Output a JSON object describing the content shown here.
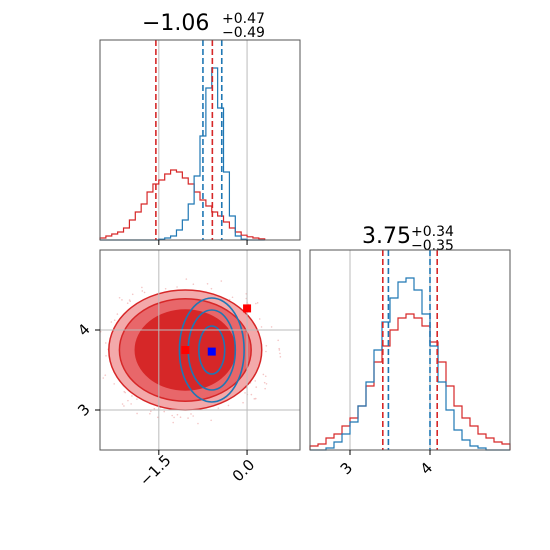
{
  "colors": {
    "red": "#d62728",
    "blue": "#1f77b4",
    "red_fill_light": "#f3a9aa",
    "red_fill_mid": "#e8676a",
    "red_fill_dark": "#d62728",
    "grid": "#bbbbbb",
    "marker_red": "#ff0000",
    "marker_blue": "#0000ff"
  },
  "titles": {
    "p1": {
      "main": "−1.06",
      "sup": "+0.47",
      "sub": "−0.49"
    },
    "p2": {
      "main": "3.75",
      "sup": "+0.34",
      "sub": "−0.35"
    }
  },
  "chart_data": [
    {
      "type": "line",
      "panel": "marginal-x",
      "drawstyle": "steps",
      "xlim": [
        -2.5,
        0.9
      ],
      "ylim": [
        0,
        5.0
      ],
      "x_bins": [
        -2.5,
        -2.4,
        -2.3,
        -2.2,
        -2.1,
        -2.0,
        -1.9,
        -1.8,
        -1.7,
        -1.6,
        -1.5,
        -1.4,
        -1.3,
        -1.2,
        -1.1,
        -1.0,
        -0.9,
        -0.8,
        -0.7,
        -0.6,
        -0.5,
        -0.4,
        -0.3,
        -0.2,
        -0.1,
        0.0,
        0.1,
        0.2,
        0.3
      ],
      "series": [
        {
          "color": "red",
          "values": [
            0.05,
            0.1,
            0.15,
            0.2,
            0.3,
            0.5,
            0.7,
            0.9,
            1.2,
            1.4,
            1.5,
            1.65,
            1.75,
            1.7,
            1.55,
            1.4,
            1.2,
            1.0,
            0.85,
            0.7,
            0.6,
            0.45,
            0.3,
            0.2,
            0.12,
            0.08,
            0.05,
            0.03
          ]
        },
        {
          "color": "blue",
          "values": [
            0,
            0,
            0,
            0,
            0,
            0,
            0,
            0,
            0,
            0,
            0.02,
            0.05,
            0.1,
            0.25,
            0.5,
            0.9,
            1.6,
            2.6,
            3.8,
            4.3,
            3.3,
            1.7,
            0.6,
            0.1,
            0.02,
            0,
            0,
            0
          ]
        }
      ],
      "vlines": [
        {
          "color": "red",
          "x": -1.55
        },
        {
          "color": "red",
          "x": -0.59
        },
        {
          "color": "blue",
          "x": -0.75
        },
        {
          "color": "blue",
          "x": -0.43
        }
      ],
      "grid_x": [
        -1.5,
        0.0
      ]
    },
    {
      "type": "line",
      "panel": "marginal-y",
      "drawstyle": "steps",
      "xlim": [
        2.5,
        5.0
      ],
      "ylim": [
        0,
        5.0
      ],
      "x_bins": [
        2.5,
        2.6,
        2.7,
        2.8,
        2.9,
        3.0,
        3.1,
        3.2,
        3.3,
        3.4,
        3.5,
        3.6,
        3.7,
        3.8,
        3.9,
        4.0,
        4.1,
        4.2,
        4.3,
        4.4,
        4.5,
        4.6,
        4.7,
        4.8,
        4.9,
        5.0
      ],
      "series": [
        {
          "color": "red",
          "values": [
            0.1,
            0.15,
            0.3,
            0.4,
            0.6,
            0.8,
            1.1,
            1.6,
            2.2,
            2.6,
            3.0,
            3.3,
            3.4,
            3.3,
            3.1,
            2.7,
            2.2,
            1.6,
            1.1,
            0.8,
            0.6,
            0.4,
            0.3,
            0.2,
            0.15
          ]
        },
        {
          "color": "blue",
          "values": [
            0,
            0,
            0.05,
            0.2,
            0.4,
            0.7,
            1.1,
            1.7,
            2.5,
            3.2,
            3.8,
            4.2,
            4.3,
            4.0,
            3.4,
            2.6,
            1.7,
            1.0,
            0.5,
            0.25,
            0.1,
            0.05,
            0,
            0,
            0
          ]
        }
      ],
      "vlines": [
        {
          "color": "red",
          "x": 3.41
        },
        {
          "color": "red",
          "x": 4.09
        },
        {
          "color": "blue",
          "x": 3.48
        },
        {
          "color": "blue",
          "x": 4.0
        }
      ],
      "grid_x": [
        3,
        4
      ],
      "tick_labels": [
        "3",
        "4"
      ]
    },
    {
      "type": "scatter",
      "panel": "joint",
      "xlim": [
        -2.5,
        0.9
      ],
      "ylim": [
        2.5,
        5.0
      ],
      "grid_x": [
        -1.5,
        0.0
      ],
      "grid_y": [
        3,
        4
      ],
      "x_tick_labels": [
        "−1.5",
        "0.0"
      ],
      "y_tick_labels": [
        "3",
        "4"
      ],
      "red_contours": [
        {
          "level": "outer",
          "cx": -1.05,
          "cy": 3.75,
          "rx": 1.3,
          "ry": 0.75
        },
        {
          "level": "middle",
          "cx": -1.05,
          "cy": 3.75,
          "rx": 1.12,
          "ry": 0.64
        },
        {
          "level": "inner",
          "cx": -1.05,
          "cy": 3.75,
          "rx": 0.85,
          "ry": 0.5
        }
      ],
      "blue_contours": [
        {
          "cx": -0.6,
          "cy": 3.75,
          "rx": 0.55,
          "ry": 0.65
        },
        {
          "cx": -0.6,
          "cy": 3.75,
          "rx": 0.4,
          "ry": 0.5
        },
        {
          "cx": -0.6,
          "cy": 3.75,
          "rx": 0.22,
          "ry": 0.3
        }
      ],
      "markers": [
        {
          "color": "marker_red",
          "x": -1.05,
          "y": 3.75
        },
        {
          "color": "marker_blue",
          "x": -0.6,
          "y": 3.73
        },
        {
          "color": "marker_red",
          "x": 0.0,
          "y": 4.27
        }
      ]
    }
  ]
}
